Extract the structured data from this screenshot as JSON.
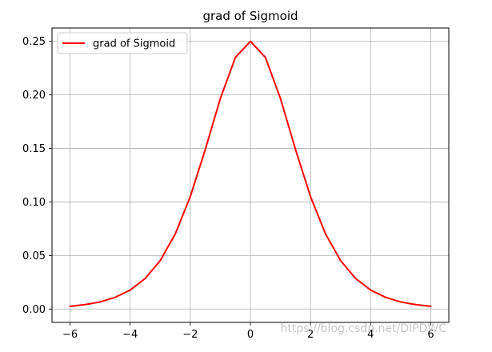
{
  "chart_data": {
    "type": "line",
    "title": "grad of Sigmoid",
    "xlabel": "",
    "ylabel": "",
    "xlim": [
      -6.6,
      6.6
    ],
    "ylim": [
      -0.0125,
      0.2625
    ],
    "x_ticks": [
      -6,
      -4,
      -2,
      0,
      2,
      4,
      6
    ],
    "x_tick_labels": [
      "−6",
      "−4",
      "−2",
      "0",
      "2",
      "4",
      "6"
    ],
    "y_ticks": [
      0.0,
      0.05,
      0.1,
      0.15,
      0.2,
      0.25
    ],
    "y_tick_labels": [
      "0.00",
      "0.05",
      "0.10",
      "0.15",
      "0.20",
      "0.25"
    ],
    "grid": true,
    "legend_position": "top-left",
    "series": [
      {
        "name": "grad of Sigmoid",
        "color": "#ff0000",
        "x": [
          -6,
          -5.5,
          -5,
          -4.5,
          -4,
          -3.5,
          -3,
          -2.5,
          -2,
          -1.5,
          -1,
          -0.5,
          0,
          0.5,
          1,
          1.5,
          2,
          2.5,
          3,
          3.5,
          4,
          4.5,
          5,
          5.5,
          6
        ],
        "y": [
          0.0025,
          0.0041,
          0.0066,
          0.0109,
          0.0177,
          0.0285,
          0.0452,
          0.0701,
          0.105,
          0.1491,
          0.1966,
          0.235,
          0.25,
          0.235,
          0.1966,
          0.1491,
          0.105,
          0.0701,
          0.0452,
          0.0285,
          0.0177,
          0.0109,
          0.0066,
          0.0041,
          0.0025
        ]
      }
    ]
  },
  "watermark": "https://blog.csdn.net/DIPDWC"
}
